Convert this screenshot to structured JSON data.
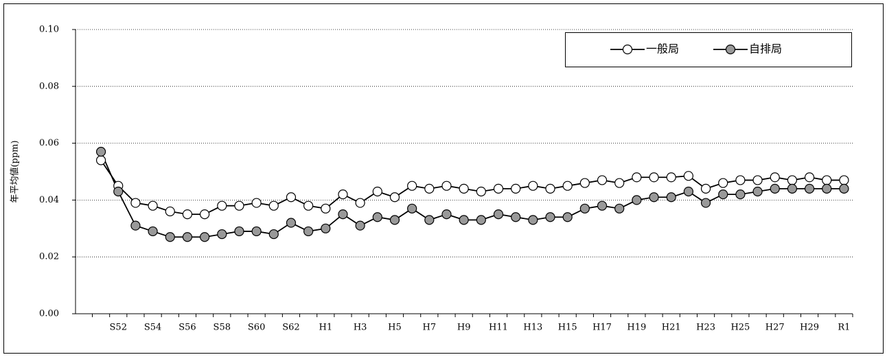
{
  "chart_data": {
    "type": "line",
    "y_label": "年平均値(ppm)",
    "categories": [
      null,
      "S52",
      null,
      "S54",
      null,
      "S56",
      null,
      "S58",
      null,
      "S60",
      null,
      "S62",
      null,
      "H1",
      null,
      "H3",
      null,
      "H5",
      null,
      "H7",
      null,
      "H9",
      null,
      "H11",
      null,
      "H13",
      null,
      "H15",
      null,
      "H17",
      null,
      "H19",
      null,
      "H21",
      null,
      "H23",
      null,
      "H25",
      null,
      "H27",
      null,
      "H29",
      null,
      "R1"
    ],
    "series": [
      {
        "name": "一般局",
        "color": "#ffffff",
        "values": [
          0.054,
          0.045,
          0.039,
          0.038,
          0.036,
          0.035,
          0.035,
          0.038,
          0.038,
          0.039,
          0.038,
          0.041,
          0.038,
          0.037,
          0.042,
          0.039,
          0.043,
          0.041,
          0.045,
          0.044,
          0.045,
          0.044,
          0.043,
          0.044,
          0.044,
          0.045,
          0.044,
          0.045,
          0.046,
          0.047,
          0.046,
          0.048,
          0.048,
          0.048,
          0.0485,
          0.044,
          0.046,
          0.047,
          0.047,
          0.048,
          0.047,
          0.048,
          0.047,
          0.047
        ]
      },
      {
        "name": "自排局",
        "color": "#999999",
        "values": [
          0.057,
          0.043,
          0.031,
          0.029,
          0.027,
          0.027,
          0.027,
          0.028,
          0.029,
          0.029,
          0.028,
          0.032,
          0.029,
          0.03,
          0.035,
          0.031,
          0.034,
          0.033,
          0.037,
          0.033,
          0.035,
          0.033,
          0.033,
          0.035,
          0.034,
          0.033,
          0.034,
          0.034,
          0.037,
          0.038,
          0.037,
          0.04,
          0.041,
          0.041,
          0.043,
          0.039,
          0.042,
          0.042,
          0.043,
          0.044,
          0.044,
          0.044,
          0.044,
          0.044
        ]
      }
    ],
    "ylim": [
      0,
      0.1
    ],
    "yticks": [
      {
        "value": 0,
        "label": "0.00"
      },
      0.02,
      0.04,
      0.06,
      0.08,
      {
        "value": 0.1,
        "label": "0.10"
      }
    ],
    "grid": true,
    "legend": "upper right"
  }
}
